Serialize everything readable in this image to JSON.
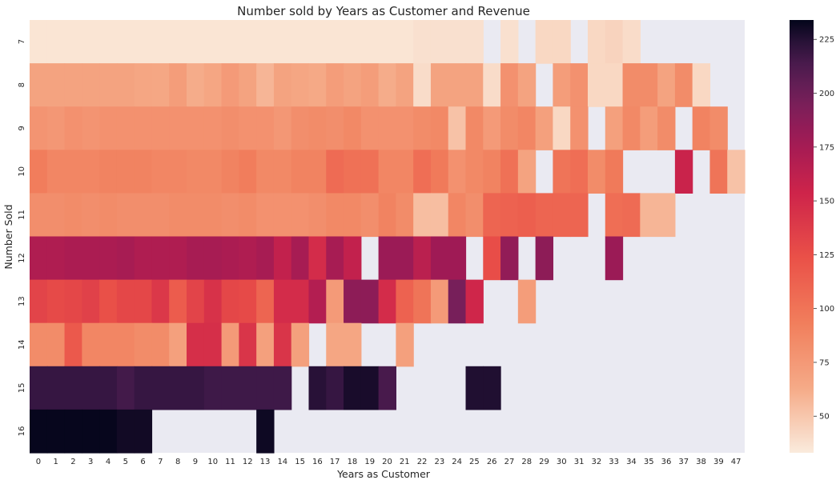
{
  "chart_data": {
    "type": "heatmap",
    "title": "Number sold by Years as Customer and Revenue",
    "xlabel": "Years as Customer",
    "ylabel": "Number Sold",
    "x_categories": [
      "0",
      "1",
      "2",
      "3",
      "4",
      "5",
      "6",
      "7",
      "8",
      "9",
      "10",
      "11",
      "12",
      "13",
      "14",
      "15",
      "16",
      "17",
      "18",
      "19",
      "20",
      "21",
      "22",
      "23",
      "24",
      "25",
      "26",
      "27",
      "28",
      "29",
      "30",
      "31",
      "32",
      "33",
      "34",
      "35",
      "36",
      "37",
      "38",
      "39",
      "47"
    ],
    "y_categories": [
      "7",
      "8",
      "9",
      "10",
      "11",
      "12",
      "13",
      "14",
      "15",
      "16"
    ],
    "colorbar": {
      "min": 33,
      "max": 234,
      "ticks": [
        50,
        75,
        100,
        125,
        150,
        175,
        200,
        225
      ]
    },
    "missing_color": "#eaeaf2",
    "colormap": "rocket_r",
    "values": [
      [
        36,
        36,
        36,
        36,
        36,
        36,
        36,
        36,
        36,
        36,
        36,
        36,
        36,
        36,
        36,
        36,
        36,
        36,
        36,
        36,
        36,
        36,
        38,
        38,
        38,
        38,
        null,
        38,
        null,
        42,
        42,
        null,
        42,
        44,
        40,
        null,
        null,
        null,
        null,
        null,
        null
      ],
      [
        68,
        68,
        68,
        68,
        68,
        68,
        66,
        65,
        72,
        62,
        66,
        74,
        68,
        58,
        68,
        66,
        64,
        72,
        68,
        72,
        62,
        68,
        40,
        68,
        68,
        68,
        40,
        80,
        68,
        null,
        72,
        80,
        42,
        42,
        84,
        84,
        68,
        84,
        42,
        null,
        null
      ],
      [
        78,
        76,
        80,
        78,
        80,
        80,
        80,
        80,
        80,
        80,
        80,
        82,
        80,
        80,
        76,
        82,
        84,
        82,
        86,
        80,
        80,
        80,
        84,
        86,
        52,
        86,
        74,
        84,
        88,
        70,
        42,
        80,
        null,
        70,
        86,
        72,
        84,
        null,
        90,
        84,
        null
      ],
      [
        94,
        88,
        88,
        88,
        90,
        90,
        90,
        88,
        88,
        86,
        86,
        90,
        94,
        86,
        86,
        90,
        90,
        106,
        102,
        102,
        88,
        88,
        104,
        96,
        80,
        86,
        90,
        102,
        68,
        null,
        100,
        104,
        84,
        96,
        null,
        null,
        null,
        156,
        null,
        100,
        52
      ],
      [
        82,
        82,
        84,
        82,
        84,
        82,
        82,
        82,
        84,
        84,
        84,
        82,
        84,
        80,
        80,
        80,
        82,
        86,
        86,
        82,
        90,
        84,
        54,
        54,
        88,
        82,
        110,
        112,
        114,
        110,
        110,
        110,
        null,
        104,
        106,
        58,
        58,
        null,
        null,
        null,
        null
      ],
      [
        170,
        170,
        172,
        172,
        172,
        174,
        170,
        170,
        170,
        174,
        174,
        172,
        170,
        174,
        160,
        174,
        148,
        174,
        160,
        null,
        180,
        180,
        164,
        178,
        178,
        null,
        126,
        184,
        null,
        186,
        null,
        null,
        null,
        180,
        null,
        null,
        null,
        null,
        null,
        null,
        null
      ],
      [
        132,
        128,
        130,
        134,
        124,
        130,
        130,
        140,
        116,
        132,
        144,
        130,
        128,
        110,
        148,
        148,
        168,
        74,
        186,
        186,
        148,
        112,
        100,
        74,
        196,
        152,
        null,
        null,
        72,
        null,
        null,
        null,
        null,
        null,
        null,
        null,
        null,
        null,
        null,
        null,
        null
      ],
      [
        84,
        84,
        118,
        88,
        88,
        88,
        84,
        84,
        70,
        146,
        146,
        74,
        142,
        70,
        142,
        70,
        null,
        66,
        66,
        null,
        null,
        70,
        null,
        null,
        null,
        null,
        null,
        null,
        null,
        null,
        null,
        null,
        null,
        null,
        null,
        null,
        null,
        null,
        null,
        null,
        null
      ],
      [
        220,
        220,
        220,
        220,
        220,
        216,
        220,
        220,
        220,
        220,
        218,
        218,
        218,
        218,
        218,
        null,
        224,
        220,
        228,
        228,
        214,
        null,
        null,
        null,
        null,
        226,
        226,
        null,
        null,
        null,
        null,
        null,
        null,
        null,
        null,
        null,
        null,
        null,
        null,
        null,
        null
      ],
      [
        233,
        233,
        233,
        233,
        233,
        230,
        230,
        null,
        null,
        null,
        null,
        null,
        null,
        231,
        null,
        null,
        null,
        null,
        null,
        null,
        null,
        null,
        null,
        null,
        null,
        null,
        null,
        null,
        null,
        null,
        null,
        null,
        null,
        null,
        null,
        null,
        null,
        null,
        null,
        null,
        null
      ]
    ]
  }
}
